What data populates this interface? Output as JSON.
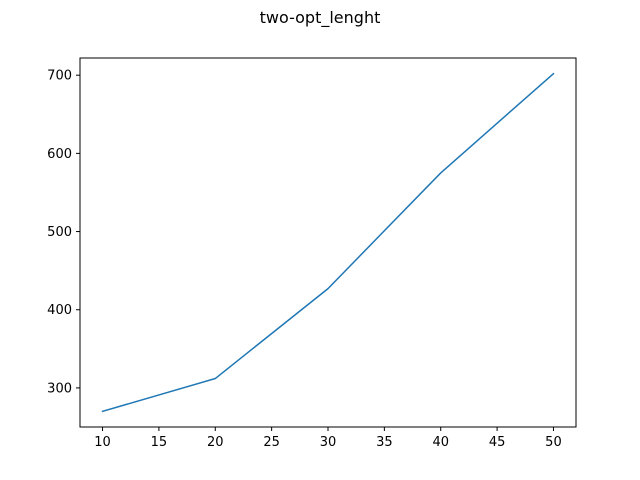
{
  "chart_data": {
    "type": "line",
    "title": "two-opt_lenght",
    "xlabel": "",
    "ylabel": "",
    "xlim": [
      8,
      52
    ],
    "ylim": [
      250,
      722
    ],
    "grid": false,
    "x_ticks": [
      10,
      15,
      20,
      25,
      30,
      35,
      40,
      45,
      50
    ],
    "y_ticks": [
      300,
      400,
      500,
      600,
      700
    ],
    "series": [
      {
        "color": "#1f77b4",
        "x": [
          10,
          20,
          30,
          40,
          50
        ],
        "y": [
          270,
          312,
          427,
          575,
          702
        ]
      }
    ]
  }
}
